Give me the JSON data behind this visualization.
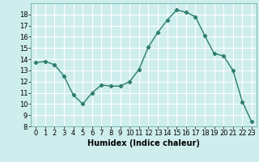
{
  "x": [
    0,
    1,
    2,
    3,
    4,
    5,
    6,
    7,
    8,
    9,
    10,
    11,
    12,
    13,
    14,
    15,
    16,
    17,
    18,
    19,
    20,
    21,
    22,
    23
  ],
  "y": [
    13.7,
    13.8,
    13.5,
    12.5,
    10.8,
    10.0,
    11.0,
    11.7,
    11.6,
    11.6,
    12.0,
    13.1,
    15.1,
    16.4,
    17.5,
    18.4,
    18.2,
    17.8,
    16.1,
    14.5,
    14.3,
    13.0,
    10.2,
    8.4
  ],
  "line_color": "#2e7d6e",
  "marker": "D",
  "marker_size": 2.2,
  "bg_color": "#ceeeed",
  "grid_color": "#ffffff",
  "xlabel": "Humidex (Indice chaleur)",
  "ylim": [
    8,
    19
  ],
  "xlim": [
    -0.5,
    23.5
  ],
  "yticks": [
    8,
    9,
    10,
    11,
    12,
    13,
    14,
    15,
    16,
    17,
    18
  ],
  "xticks": [
    0,
    1,
    2,
    3,
    4,
    5,
    6,
    7,
    8,
    9,
    10,
    11,
    12,
    13,
    14,
    15,
    16,
    17,
    18,
    19,
    20,
    21,
    22,
    23
  ],
  "xlabel_fontsize": 7,
  "tick_fontsize": 6,
  "linewidth": 1.0
}
